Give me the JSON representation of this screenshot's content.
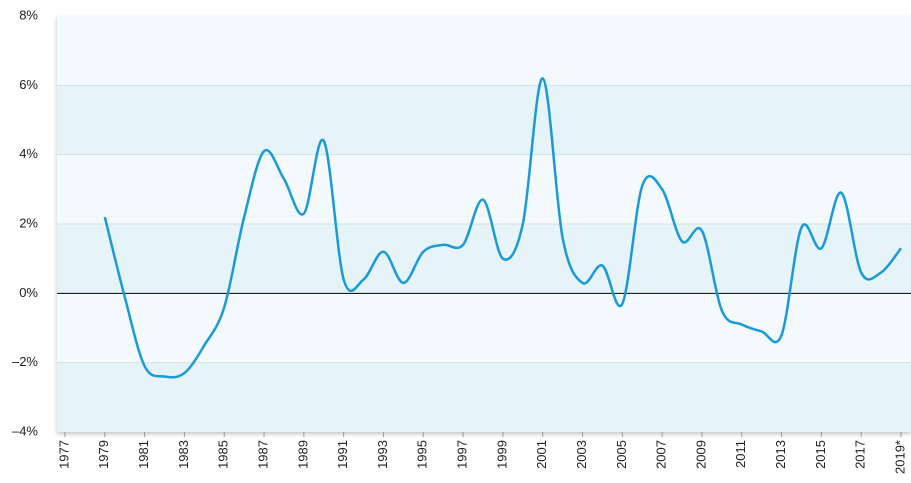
{
  "chart_data": {
    "type": "line",
    "x": [
      1979,
      1980,
      1981,
      1982,
      1983,
      1984,
      1985,
      1986,
      1987,
      1988,
      1989,
      1990,
      1991,
      1992,
      1993,
      1994,
      1995,
      1996,
      1997,
      1998,
      1999,
      2000,
      2001,
      2002,
      2003,
      2004,
      2005,
      2006,
      2007,
      2008,
      2009,
      2010,
      2011,
      2012,
      2013,
      2014,
      2015,
      2016,
      2017,
      2018,
      2019
    ],
    "series": [
      {
        "color": "#1a9ad6",
        "values": [
          2.2,
          -0.1,
          -2.1,
          -2.4,
          -2.3,
          -1.5,
          -0.4,
          2.2,
          4.1,
          3.3,
          2.3,
          4.4,
          0.4,
          0.4,
          1.2,
          0.3,
          1.2,
          1.4,
          1.4,
          2.7,
          1.0,
          2.0,
          6.2,
          1.6,
          0.3,
          0.8,
          -0.3,
          3.1,
          3.0,
          1.5,
          1.8,
          -0.5,
          -0.9,
          -1.1,
          -1.2,
          1.9,
          1.3,
          2.9,
          0.6,
          0.6,
          1.3
        ]
      }
    ],
    "xlim": [
      1977,
      2019
    ],
    "xticks": [
      1977,
      1979,
      1981,
      1983,
      1985,
      1987,
      1989,
      1991,
      1993,
      1995,
      1997,
      1999,
      2001,
      2003,
      2005,
      2007,
      2009,
      2011,
      2013,
      2015,
      2017,
      {
        "value": 2019,
        "label": "2019*"
      }
    ],
    "ylim": [
      -4,
      8
    ],
    "yticks": [
      {
        "value": -4,
        "label": "–4%"
      },
      {
        "value": -2,
        "label": "–2%"
      },
      {
        "value": 0,
        "label": "0%"
      },
      {
        "value": 2,
        "label": "2%"
      },
      {
        "value": 4,
        "label": "4%"
      },
      {
        "value": 6,
        "label": "6%"
      },
      {
        "value": 8,
        "label": "8%"
      }
    ],
    "grid": true
  }
}
